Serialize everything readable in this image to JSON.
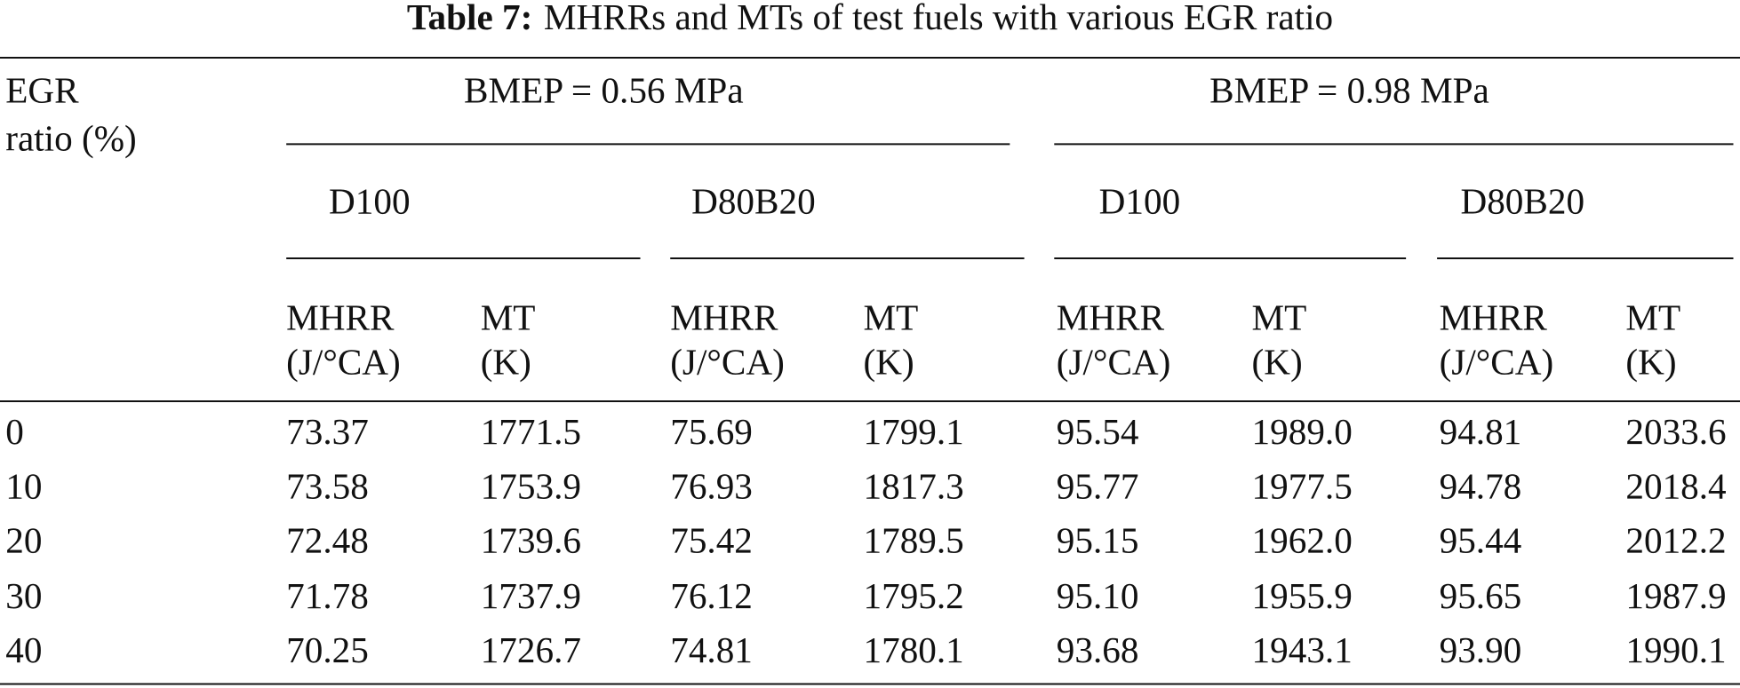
{
  "caption": {
    "label": "Table 7:",
    "text": "MHRRs and MTs of test fuels with various EGR ratio"
  },
  "table": {
    "corner": [
      "EGR",
      "ratio (%)"
    ],
    "groups": [
      {
        "label": "BMEP = 0.56 MPa",
        "fuels": [
          {
            "label": "D100",
            "columns": [
              {
                "name": "MHRR",
                "unit": "(J/°CA)"
              },
              {
                "name": "MT",
                "unit": "(K)"
              }
            ]
          },
          {
            "label": "D80B20",
            "columns": [
              {
                "name": "MHRR",
                "unit": "(J/°CA)"
              },
              {
                "name": "MT",
                "unit": "(K)"
              }
            ]
          }
        ]
      },
      {
        "label": "BMEP = 0.98 MPa",
        "fuels": [
          {
            "label": "D100",
            "columns": [
              {
                "name": "MHRR",
                "unit": "(J/°CA)"
              },
              {
                "name": "MT",
                "unit": "(K)"
              }
            ]
          },
          {
            "label": "D80B20",
            "columns": [
              {
                "name": "MHRR",
                "unit": "(J/°CA)"
              },
              {
                "name": "MT",
                "unit": "(K)"
              }
            ]
          }
        ]
      }
    ],
    "rows": [
      {
        "egr": "0",
        "values": [
          "73.37",
          "1771.5",
          "75.69",
          "1799.1",
          "95.54",
          "1989.0",
          "94.81",
          "2033.6"
        ]
      },
      {
        "egr": "10",
        "values": [
          "73.58",
          "1753.9",
          "76.93",
          "1817.3",
          "95.77",
          "1977.5",
          "94.78",
          "2018.4"
        ]
      },
      {
        "egr": "20",
        "values": [
          "72.48",
          "1739.6",
          "75.42",
          "1789.5",
          "95.15",
          "1962.0",
          "95.44",
          "2012.2"
        ]
      },
      {
        "egr": "30",
        "values": [
          "71.78",
          "1737.9",
          "76.12",
          "1795.2",
          "95.10",
          "1955.9",
          "95.65",
          "1987.9"
        ]
      },
      {
        "egr": "40",
        "values": [
          "70.25",
          "1726.7",
          "74.81",
          "1780.1",
          "93.68",
          "1943.1",
          "93.90",
          "1990.1"
        ]
      }
    ]
  }
}
